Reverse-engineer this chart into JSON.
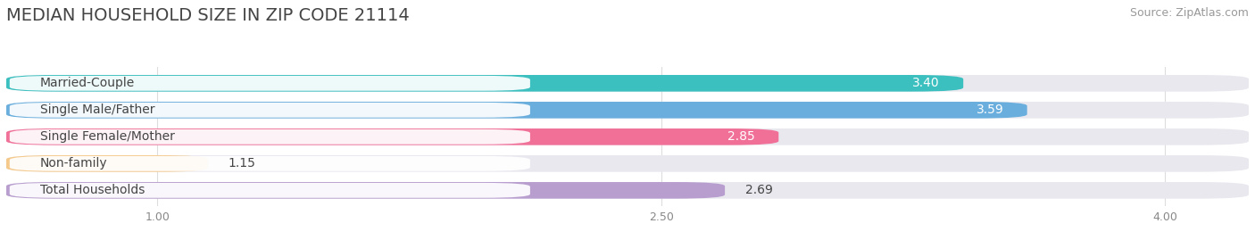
{
  "title": "MEDIAN HOUSEHOLD SIZE IN ZIP CODE 21114",
  "source": "Source: ZipAtlas.com",
  "categories": [
    "Married-Couple",
    "Single Male/Father",
    "Single Female/Mother",
    "Non-family",
    "Total Households"
  ],
  "values": [
    3.4,
    3.59,
    2.85,
    1.15,
    2.69
  ],
  "bar_colors": [
    "#3bbfbf",
    "#6aaedd",
    "#f07098",
    "#f5c98a",
    "#b89ecf"
  ],
  "bg_color": "#e8e8ee",
  "label_bg": "#ffffff",
  "xlim_left": 0.55,
  "xlim_right": 4.25,
  "xticks": [
    1.0,
    2.5,
    4.0
  ],
  "title_fontsize": 14,
  "source_fontsize": 9,
  "label_fontsize": 10,
  "value_fontsize": 10,
  "bar_height": 0.62,
  "bar_gap": 0.38,
  "figsize": [
    14.06,
    2.69
  ],
  "dpi": 100,
  "fig_bg": "#ffffff",
  "ax_bg": "#ffffff",
  "grid_color": "#dddddd",
  "label_color": "#444444",
  "value_inside_color": "#ffffff",
  "value_outside_color": "#444444",
  "title_color": "#444444",
  "source_color": "#999999",
  "tick_color": "#888888"
}
